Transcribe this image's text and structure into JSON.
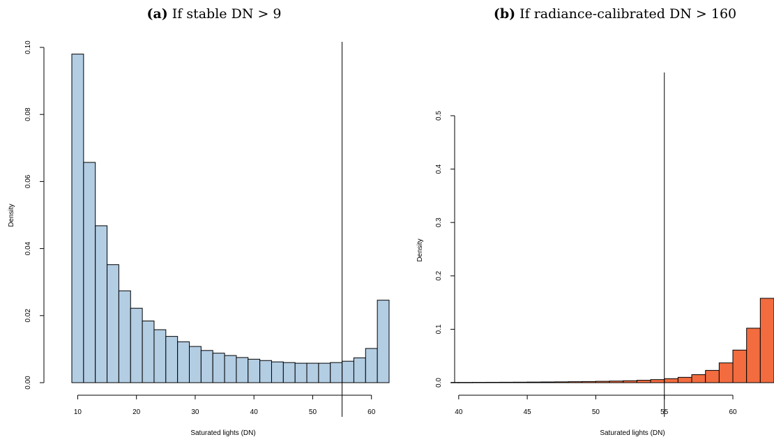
{
  "chart_data": [
    {
      "type": "bar",
      "title_prefix": "(a)",
      "title_text": "If stable DN > 9",
      "xlabel": "Saturated lights (DN)",
      "ylabel": "Density",
      "xlim": [
        9,
        63
      ],
      "ylim": [
        0,
        0.1
      ],
      "xticks": [
        "10",
        "20",
        "30",
        "40",
        "50",
        "60"
      ],
      "yticks": [
        "0.00",
        "0.02",
        "0.04",
        "0.06",
        "0.08",
        "0.10"
      ],
      "vline": 55,
      "bar_color": "#b3cde3",
      "bin_width": 2,
      "bin_start": 9,
      "values": [
        0.098,
        0.0657,
        0.0468,
        0.0352,
        0.0274,
        0.0222,
        0.0184,
        0.0158,
        0.0138,
        0.0122,
        0.0108,
        0.0096,
        0.0088,
        0.0081,
        0.0075,
        0.007,
        0.0066,
        0.0062,
        0.006,
        0.0058,
        0.0058,
        0.0058,
        0.006,
        0.0064,
        0.0074,
        0.0102,
        0.0246
      ]
    },
    {
      "type": "bar",
      "title_prefix": "(b)",
      "title_text": "If radiance-calibrated DN > 160",
      "xlabel": "Saturated lights (DN)",
      "ylabel": "Density",
      "xlim": [
        39.5,
        63
      ],
      "ylim": [
        0,
        0.5
      ],
      "xticks": [
        "40",
        "45",
        "50",
        "55",
        "60"
      ],
      "yticks": [
        "0.0",
        "0.1",
        "0.2",
        "0.3",
        "0.4",
        "0.5"
      ],
      "vline": 55,
      "bar_color": "#f26c3f",
      "bin_width": 1,
      "bin_start": 39,
      "values": [
        0.0005,
        0.0005,
        0.0006,
        0.0007,
        0.0008,
        0.0009,
        0.0011,
        0.0013,
        0.0015,
        0.0018,
        0.0021,
        0.0025,
        0.003,
        0.0036,
        0.0045,
        0.0057,
        0.0075,
        0.01,
        0.015,
        0.023,
        0.037,
        0.061,
        0.102,
        0.158
      ]
    }
  ]
}
